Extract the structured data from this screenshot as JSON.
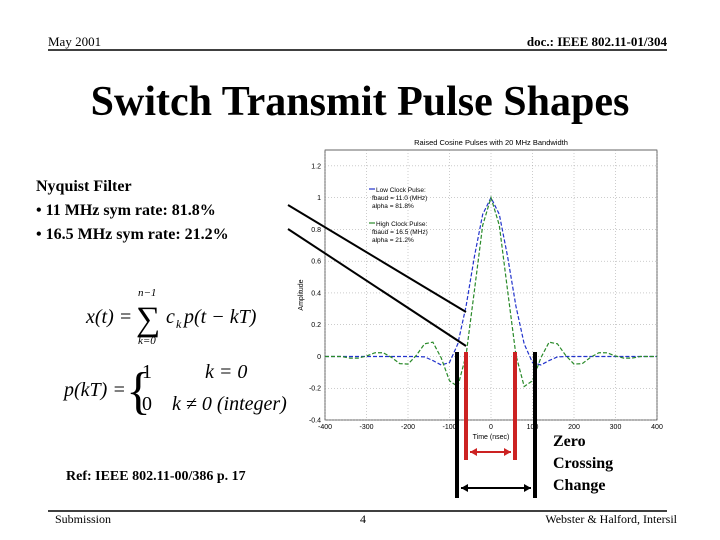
{
  "header": {
    "date": "May 2001",
    "doc": "doc.: IEEE 802.11-01/304"
  },
  "title": "Switch Transmit Pulse Shapes",
  "bullets": {
    "heading": "Nyquist Filter",
    "items": [
      "• 11 MHz sym rate:  81.8%",
      "• 16.5 MHz sym rate:  21.2%"
    ]
  },
  "equation_1": {
    "lhs": "x(t) =",
    "sum": "∑",
    "upper": "n−1",
    "lower": "k=0",
    "coef": "c",
    "sub": "k",
    "term": "p(t − kT)"
  },
  "equation_2": {
    "lhs": "p(kT) =",
    "brace": "{",
    "v1": "1",
    "c1": "k = 0",
    "v2": "0",
    "c2": "k ≠ 0 (integer)"
  },
  "annotation": [
    "Zero",
    "Crossing",
    "Change"
  ],
  "reference": "Ref: IEEE 802.11-00/386 p. 17",
  "footer": {
    "left": "Submission",
    "page": "4",
    "right": "Webster & Halford, Intersil"
  },
  "chart_data": {
    "type": "line",
    "title": "Raised Cosine Pulses with 20 MHz Bandwidth",
    "x_label": "Time (nsec)",
    "y_label": "Amplitude",
    "x": [
      -400,
      -380,
      -360,
      -340,
      -320,
      -300,
      -280,
      -260,
      -240,
      -220,
      -200,
      -180,
      -160,
      -140,
      -120,
      -100,
      -80,
      -60,
      -40,
      -20,
      0,
      20,
      40,
      60,
      80,
      100,
      120,
      140,
      160,
      180,
      200,
      220,
      240,
      260,
      280,
      300,
      320,
      340,
      360,
      380,
      400
    ],
    "series": [
      {
        "name": "Low Clock Pulse:",
        "details": [
          "fbaud = 11.0 (MHz)",
          "alpha = 81.8%"
        ],
        "color": "#2233cc",
        "values": [
          0,
          0,
          0,
          0,
          0,
          0,
          0,
          0,
          0,
          0,
          0,
          0,
          -0.003,
          -0.026,
          -0.054,
          -0.038,
          0.079,
          0.318,
          0.629,
          0.895,
          1,
          0.895,
          0.629,
          0.318,
          0.079,
          -0.038,
          -0.054,
          -0.026,
          -0.003,
          0,
          0,
          0,
          0,
          0,
          0,
          0,
          0,
          0,
          0,
          0,
          0
        ]
      },
      {
        "name": "High Clock Pulse:",
        "details": [
          "fbaud = 16.5 (MHz)",
          "alpha = 21.2%"
        ],
        "color": "#2a8a2a",
        "values": [
          0,
          0,
          0,
          -0.01,
          -0.01,
          0.003,
          0.023,
          0.024,
          -0.005,
          -0.045,
          -0.048,
          0.007,
          0.08,
          0.09,
          -0.009,
          -0.153,
          -0.189,
          0.01,
          0.415,
          0.826,
          1,
          0.826,
          0.415,
          0.01,
          -0.189,
          -0.153,
          -0.009,
          0.09,
          0.08,
          0.007,
          -0.048,
          -0.045,
          -0.005,
          0.024,
          0.023,
          0.003,
          -0.01,
          -0.01,
          0,
          0,
          0
        ]
      }
    ],
    "xlim": [
      -400,
      400
    ],
    "ylim": [
      -0.4,
      1.3
    ],
    "xticks": [
      -400,
      -300,
      -200,
      -100,
      0,
      100,
      200,
      300,
      400
    ],
    "yticks": [
      -0.4,
      -0.2,
      0,
      0.2,
      0.4,
      0.6,
      0.8,
      1,
      1.2
    ],
    "grid": true
  }
}
